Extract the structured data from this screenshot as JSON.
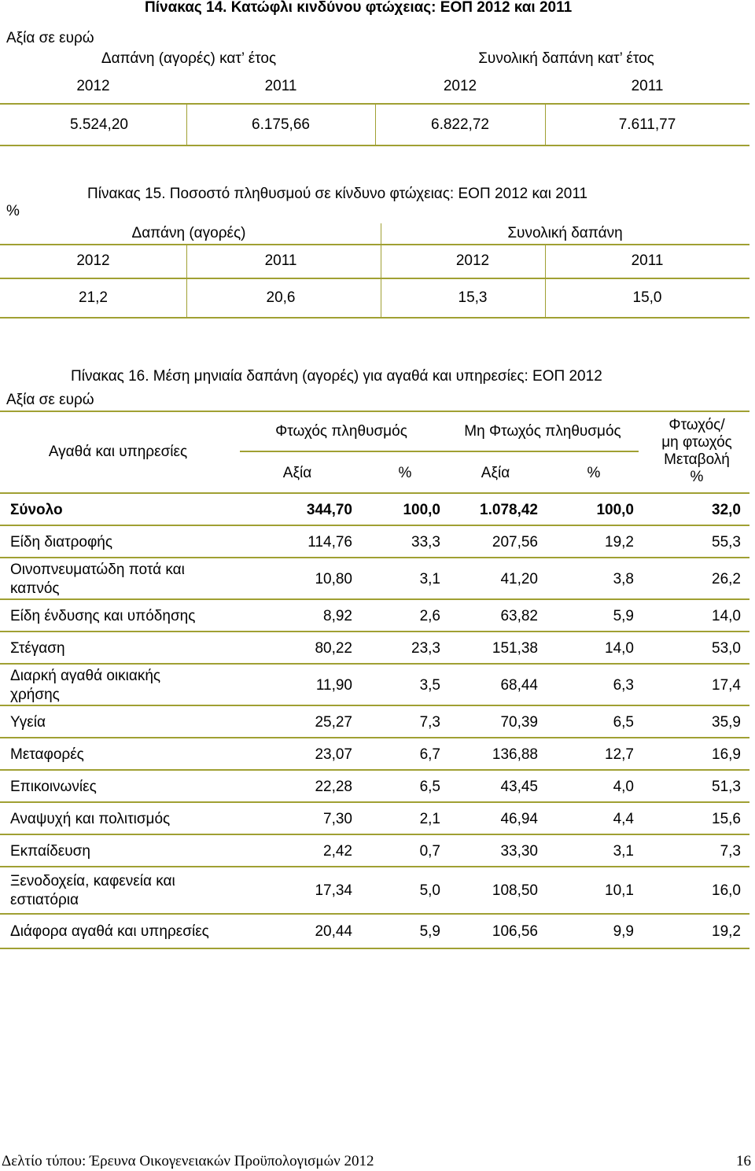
{
  "table14": {
    "title": "Πίνακας 14. Κατώφλι κινδύνου φτώχειας: ΕΟΠ 2012 και 2011",
    "unit": "Αξία σε ευρώ",
    "group1": "Δαπάνη (αγορές) κατ’ έτος",
    "group2": "Συνολική δαπάνη κατ’ έτος",
    "years": [
      "2012",
      "2011",
      "2012",
      "2011"
    ],
    "values": [
      "5.524,20",
      "6.175,66",
      "6.822,72",
      "7.611,77"
    ]
  },
  "table15": {
    "title": "Πίνακας 15. Ποσοστό πληθυσμού σε κίνδυνο φτώχειας: ΕΟΠ 2012 και 2011",
    "unit": "%",
    "group1": "Δαπάνη (αγορές)",
    "group2": "Συνολική δαπάνη",
    "years": [
      "2012",
      "2011",
      "2012",
      "2011"
    ],
    "values": [
      "21,2",
      "20,6",
      "15,3",
      "15,0"
    ]
  },
  "table16": {
    "title": "Πίνακας 16. Μέση μηνιαία δαπάνη (αγορές) για αγαθά και υπηρεσίες: ΕΟΠ 2012",
    "unit": "Αξία σε ευρώ",
    "col_goods": "Αγαθά και υπηρεσίες",
    "col_poor": "Φτωχός πληθυσμός",
    "col_nonpoor": "Μη Φτωχός πληθυσμός",
    "col_change": [
      "Φτωχός/",
      "μη φτωχός",
      "Μεταβολή",
      "%"
    ],
    "sub_value": "Αξία",
    "sub_pct": "%",
    "rows": [
      {
        "label": [
          "Σύνολο"
        ],
        "v": [
          "344,70",
          "100,0",
          "1.078,42",
          "100,0",
          "32,0"
        ]
      },
      {
        "label": [
          "Είδη διατροφής"
        ],
        "v": [
          "114,76",
          "33,3",
          "207,56",
          "19,2",
          "55,3"
        ]
      },
      {
        "label": [
          "Οινοπνευματώδη ποτά και",
          "καπνός"
        ],
        "v": [
          "10,80",
          "3,1",
          "41,20",
          "3,8",
          "26,2"
        ]
      },
      {
        "label": [
          "Είδη ένδυσης και υπόδησης"
        ],
        "v": [
          "8,92",
          "2,6",
          "63,82",
          "5,9",
          "14,0"
        ]
      },
      {
        "label": [
          "Στέγαση"
        ],
        "v": [
          "80,22",
          "23,3",
          "151,38",
          "14,0",
          "53,0"
        ]
      },
      {
        "label": [
          "Διαρκή αγαθά οικιακής",
          "χρήσης"
        ],
        "v": [
          "11,90",
          "3,5",
          "68,44",
          "6,3",
          "17,4"
        ]
      },
      {
        "label": [
          "Υγεία"
        ],
        "v": [
          "25,27",
          "7,3",
          "70,39",
          "6,5",
          "35,9"
        ]
      },
      {
        "label": [
          "Μεταφορές"
        ],
        "v": [
          "23,07",
          "6,7",
          "136,88",
          "12,7",
          "16,9"
        ]
      },
      {
        "label": [
          "Επικοινωνίες"
        ],
        "v": [
          "22,28",
          "6,5",
          "43,45",
          "4,0",
          "51,3"
        ]
      },
      {
        "label": [
          "Αναψυχή και πολιτισμός"
        ],
        "v": [
          "7,30",
          "2,1",
          "46,94",
          "4,4",
          "15,6"
        ]
      },
      {
        "label": [
          "Εκπαίδευση"
        ],
        "v": [
          "2,42",
          "0,7",
          "33,30",
          "3,1",
          "7,3"
        ]
      },
      {
        "label": [
          "Ξενοδοχεία, καφενεία και",
          "εστιατόρια"
        ],
        "v": [
          "17,34",
          "5,0",
          "108,50",
          "10,1",
          "16,0"
        ]
      },
      {
        "label": [
          "Διάφορα αγαθά και υπηρεσίες"
        ],
        "v": [
          "20,44",
          "5,9",
          "106,56",
          "9,9",
          "19,2"
        ]
      }
    ]
  },
  "footer": {
    "text": "Δελτίο τύπου: Έρευνα Οικογενειακών Προϋπολογισμών 2012",
    "page": "16"
  },
  "colors": {
    "rule": "#a0a033"
  }
}
